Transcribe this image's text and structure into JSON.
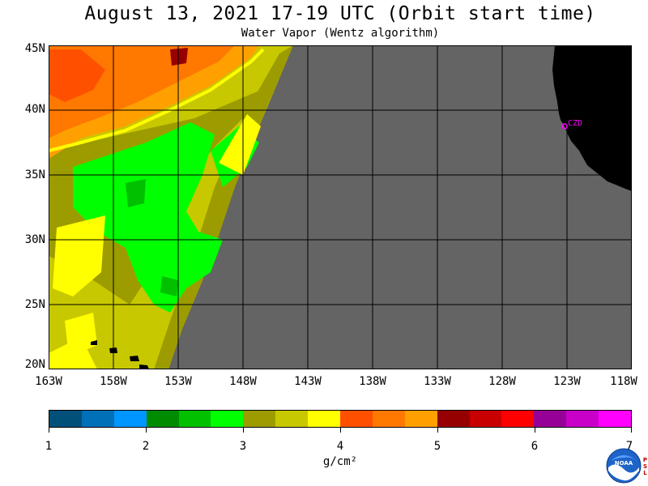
{
  "title": "August 13, 2021  17-19 UTC  (Orbit start time)",
  "subtitle": "Water Vapor (Wentz algorithm)",
  "lat_labels": [
    "45N",
    "40N",
    "35N",
    "30N",
    "25N",
    "20N"
  ],
  "lon_labels": [
    "163W",
    "158W",
    "153W",
    "148W",
    "143W",
    "138W",
    "133W",
    "128W",
    "123W",
    "118W"
  ],
  "station_label": "CZD",
  "colorbar": {
    "colors": [
      "#00507a",
      "#0070b8",
      "#0096ff",
      "#008c00",
      "#00c000",
      "#00ff00",
      "#9c9c00",
      "#c8c800",
      "#ffff00",
      "#ff5000",
      "#ff7800",
      "#ffa000",
      "#960000",
      "#c80000",
      "#ff0000",
      "#960096",
      "#c800c8",
      "#ff00ff"
    ],
    "tick_labels": [
      "1",
      "2",
      "3",
      "4",
      "5",
      "6",
      "7"
    ],
    "units": "g/cm²"
  },
  "colors": {
    "no_data": "#646464",
    "land": "#000000",
    "grid": "#000000",
    "station": "#ff00ff"
  },
  "logo": {
    "name": "NOAA",
    "side_text": [
      "P",
      "S",
      "L"
    ]
  }
}
